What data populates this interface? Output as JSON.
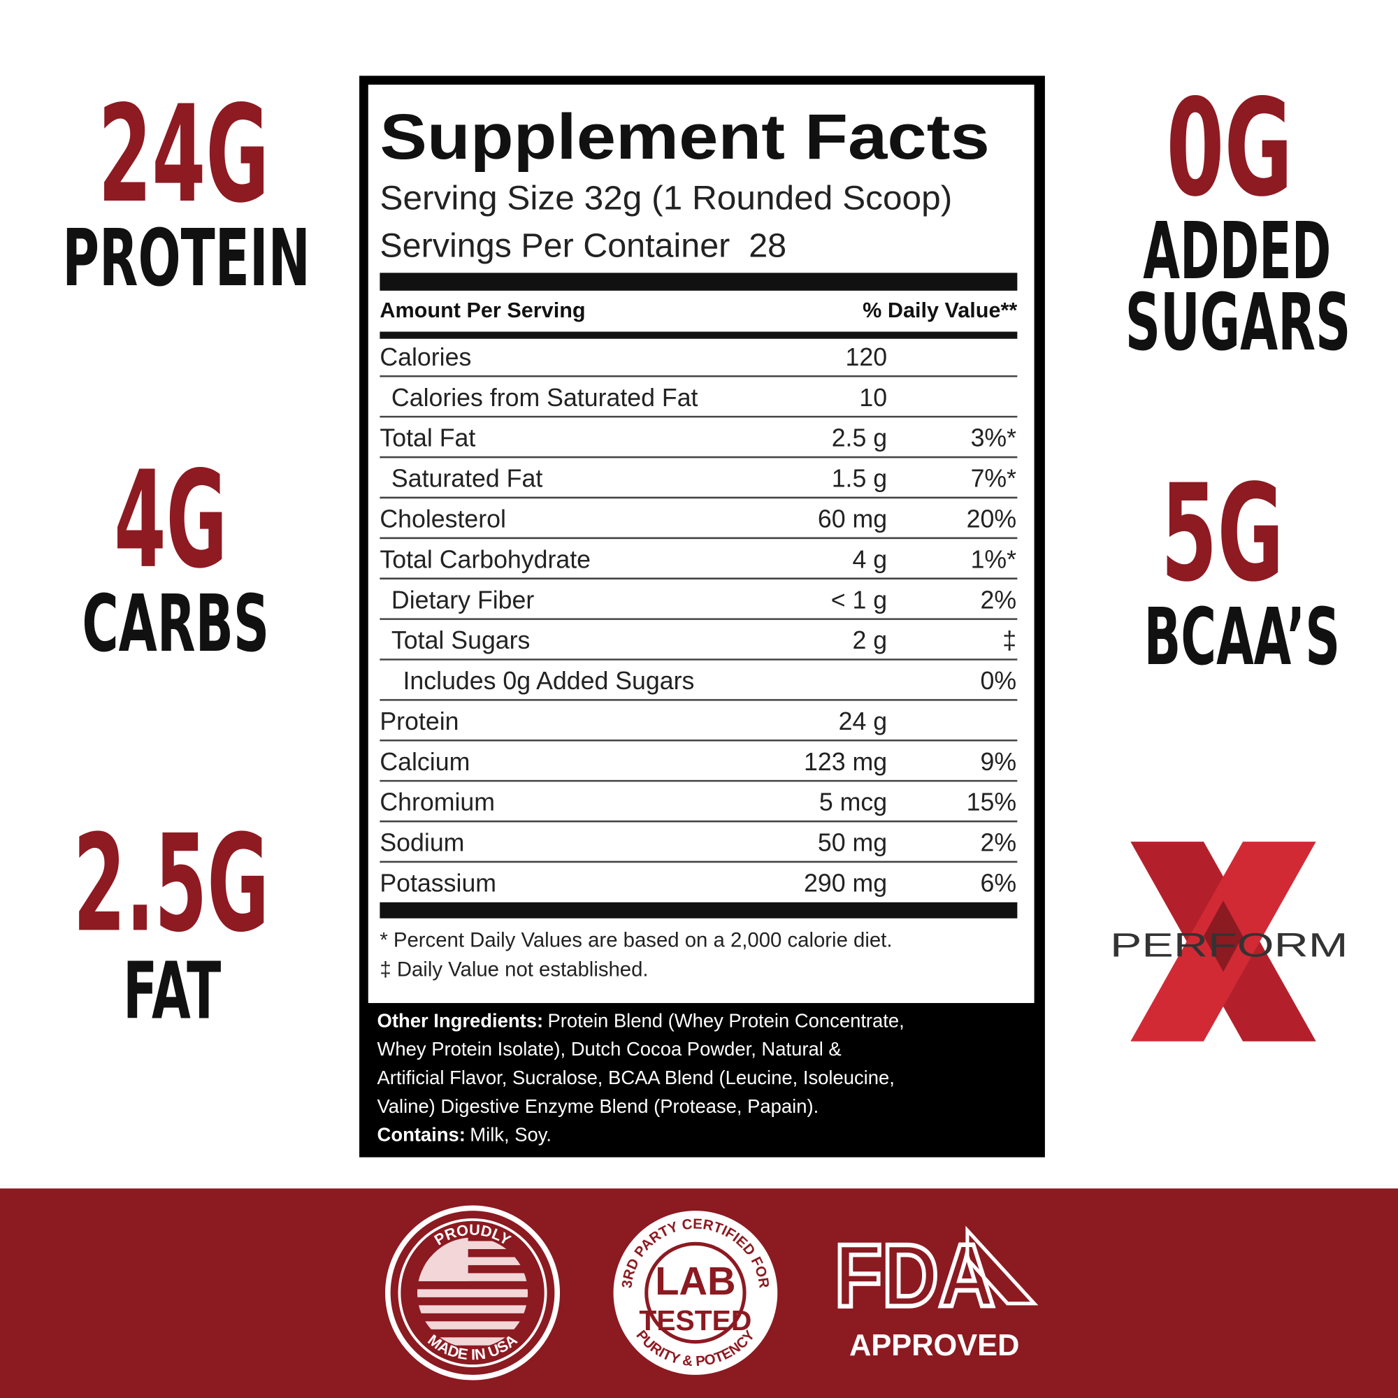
{
  "callouts_left": [
    {
      "value": "24G",
      "lines": [
        "PROTEIN"
      ]
    },
    {
      "value": "4G",
      "lines": [
        "CARBS"
      ]
    },
    {
      "value": "2.5G",
      "lines": [
        "FAT"
      ]
    }
  ],
  "callouts_right": [
    {
      "value": "0G",
      "lines": [
        "ADDED",
        "SUGARS"
      ]
    },
    {
      "value": "5G",
      "lines": [
        "BCAA’S"
      ]
    }
  ],
  "brand": "PERFORM",
  "facts": {
    "title": "Supplement Facts",
    "serving_size": "Serving Size 32g (1 Rounded Scoop)",
    "servings_per_container": "Servings Per Container  28",
    "amount_header": "Amount Per Serving",
    "dv_header": "% Daily Value**",
    "rows": [
      {
        "label": "Calories",
        "amount": "120",
        "indent": 0
      },
      {
        "label": "Calories from Saturated Fat",
        "amount": "10",
        "indent": 1
      },
      {
        "label": "Total Fat",
        "amount": "2.5 g",
        "dv": "3%*",
        "indent": 0
      },
      {
        "label": "Saturated Fat",
        "amount": "1.5 g",
        "dv": "7%*",
        "indent": 1
      },
      {
        "label": "Cholesterol",
        "amount": "60 mg",
        "dv": "20%",
        "indent": 0
      },
      {
        "label": "Total Carbohydrate",
        "amount": "4 g",
        "dv": "1%*",
        "indent": 0
      },
      {
        "label": "Dietary Fiber",
        "amount": "< 1 g",
        "dv": "2%",
        "indent": 1
      },
      {
        "label": "Total Sugars",
        "amount": "2 g",
        "dv": "‡",
        "indent": 1
      },
      {
        "label": "Includes 0g Added Sugars",
        "dv": "0%",
        "indent": 2
      },
      {
        "label": "Protein",
        "amount": "24 g",
        "indent": 0
      },
      {
        "label": "Calcium",
        "amount": "123 mg",
        "dv": "9%",
        "indent": 0
      },
      {
        "label": "Chromium",
        "amount": "5 mcg",
        "dv": "15%",
        "indent": 0
      },
      {
        "label": "Sodium",
        "amount": "50 mg",
        "dv": "2%",
        "indent": 0
      },
      {
        "label": "Potassium",
        "amount": "290 mg",
        "dv": "6%",
        "indent": 0
      }
    ],
    "footnotes": [
      "* Percent Daily Values are based on a 2,000 calorie diet.",
      "‡ Daily Value not established."
    ]
  },
  "ingredients": {
    "label": "Other Ingredients:",
    "lines": [
      "Protein Blend (Whey Protein Concentrate,",
      "Whey Protein Isolate), Dutch Cocoa Powder, Natural &",
      "Artificial Flavor, Sucralose, BCAA Blend (Leucine, Isoleucine,",
      "Valine) Digestive Enzyme Blend (Protease, Papain)."
    ]
  },
  "contains": {
    "label": "Contains:",
    "text": "Milk, Soy."
  },
  "badges": {
    "usa": {
      "top": "PROUDLY",
      "bottom": "MADE IN USA"
    },
    "lab": {
      "arc_top": "3RD PARTY CERTIFIED FOR",
      "arc_bottom": "PURITY & POTENCY",
      "lines": [
        "LAB",
        "TESTED"
      ]
    },
    "fda": {
      "logo": "FDA",
      "caption": "APPROVED"
    }
  }
}
